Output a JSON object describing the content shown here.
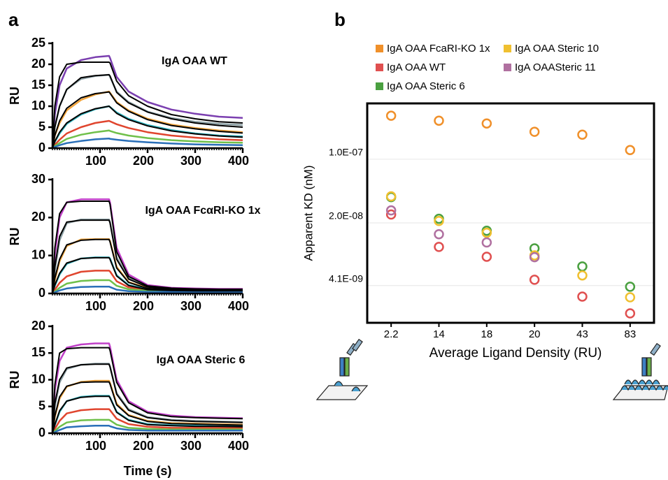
{
  "panels": [
    "a",
    "b"
  ],
  "chart_data": [
    {
      "type": "line",
      "title": "IgA OAA WT",
      "ylabel": "RU",
      "x": [
        0,
        5,
        15,
        30,
        60,
        90,
        119,
        121,
        135,
        160,
        200,
        250,
        300,
        350,
        400
      ],
      "xlim": [
        0,
        400
      ],
      "xticks": [
        100,
        200,
        300,
        400
      ],
      "ylim": [
        0,
        25
      ],
      "yticks": [
        0,
        5,
        10,
        15,
        20,
        25
      ],
      "series": [
        {
          "color": "#7b3fb0",
          "values": [
            0,
            8,
            15,
            19,
            21,
            21.7,
            22,
            21.5,
            17,
            13.5,
            11,
            9.2,
            8.2,
            7.5,
            7.2
          ]
        },
        {
          "color": "#8fa3a8",
          "values": [
            0,
            5,
            10,
            14,
            16.5,
            17.2,
            17.5,
            17,
            13.5,
            11,
            8.7,
            7.2,
            6.3,
            5.8,
            5.5
          ]
        },
        {
          "color": "#f2a43a",
          "values": [
            0,
            3,
            6,
            9,
            11.5,
            12.8,
            13.5,
            13.2,
            11,
            9,
            7,
            5.6,
            4.8,
            4.2,
            3.8
          ]
        },
        {
          "color": "#2fb5c0",
          "values": [
            0,
            1.5,
            3.5,
            5.8,
            8,
            9.3,
            10,
            9.8,
            8.5,
            7,
            5.5,
            4.3,
            3.5,
            3,
            2.8
          ]
        },
        {
          "color": "#e0452e",
          "values": [
            0,
            0.8,
            2,
            3.5,
            5,
            6,
            6.5,
            6.4,
            5.7,
            4.8,
            3.8,
            3,
            2.5,
            2.1,
            1.9
          ]
        },
        {
          "color": "#6fc04a",
          "values": [
            0,
            0.5,
            1.2,
            2.2,
            3.2,
            3.8,
            4.2,
            4.1,
            3.6,
            3,
            2.4,
            1.9,
            1.6,
            1.4,
            1.3
          ]
        },
        {
          "color": "#2a6fb8",
          "values": [
            0,
            0.3,
            0.7,
            1.2,
            1.7,
            2.1,
            2.3,
            2.2,
            2,
            1.7,
            1.4,
            1.1,
            0.9,
            0.8,
            0.7
          ]
        },
        {
          "color": "#000000",
          "values": [
            0,
            10,
            17,
            20,
            20.5,
            20.5,
            20.5,
            20.3,
            16,
            12.5,
            10,
            8,
            7,
            6.3,
            6
          ]
        },
        {
          "color": "#000000",
          "values": [
            0,
            5,
            10,
            14,
            16.8,
            17.3,
            17.5,
            17.2,
            13.3,
            10.8,
            8.6,
            7,
            6,
            5.4,
            5
          ]
        },
        {
          "color": "#000000",
          "values": [
            0,
            3,
            6.5,
            9.5,
            12,
            13,
            13.4,
            13.1,
            10.8,
            8.8,
            6.8,
            5.4,
            4.6,
            4,
            3.6
          ]
        },
        {
          "color": "#000000",
          "values": [
            0,
            1.6,
            3.8,
            6,
            8.2,
            9.4,
            10,
            9.8,
            8.3,
            6.8,
            5.3,
            4.1,
            3.4,
            2.9,
            2.6
          ]
        }
      ]
    },
    {
      "type": "line",
      "title": "IgA OAA FcαRI-KO 1x",
      "ylabel": "RU",
      "x": [
        0,
        5,
        15,
        30,
        60,
        90,
        119,
        121,
        135,
        160,
        200,
        250,
        300,
        350,
        400
      ],
      "xlim": [
        0,
        400
      ],
      "xticks": [
        100,
        200,
        300,
        400
      ],
      "ylim": [
        0,
        30
      ],
      "yticks": [
        0,
        10,
        20,
        30
      ],
      "series": [
        {
          "color": "#c040c8",
          "values": [
            0,
            10,
            20,
            24,
            24.8,
            24.8,
            24.8,
            24,
            12,
            5,
            2.2,
            1.5,
            1.3,
            1.2,
            1.2
          ]
        },
        {
          "color": "#8fa3a8",
          "values": [
            0,
            6,
            14,
            18.5,
            19.5,
            19.5,
            19.5,
            18.8,
            9.5,
            4,
            1.8,
            1.3,
            1.1,
            1,
            1
          ]
        },
        {
          "color": "#f2a43a",
          "values": [
            0,
            3.5,
            8.5,
            12.5,
            14.2,
            14.3,
            14.3,
            13.8,
            7,
            3,
            1.4,
            1,
            0.9,
            0.8,
            0.8
          ]
        },
        {
          "color": "#2fb5c0",
          "values": [
            0,
            2,
            5,
            7.8,
            9.2,
            9.5,
            9.5,
            9.2,
            4.8,
            2.2,
            1.1,
            0.9,
            0.8,
            0.7,
            0.7
          ]
        },
        {
          "color": "#e0452e",
          "values": [
            0,
            1,
            2.8,
            4.5,
            5.7,
            6,
            6,
            5.8,
            3.2,
            1.6,
            0.9,
            0.7,
            0.6,
            0.6,
            0.6
          ]
        },
        {
          "color": "#6fc04a",
          "values": [
            0,
            0.5,
            1.5,
            2.6,
            3.3,
            3.5,
            3.5,
            3.4,
            2,
            1.1,
            0.7,
            0.6,
            0.5,
            0.5,
            0.5
          ]
        },
        {
          "color": "#2a6fb8",
          "values": [
            0,
            0.3,
            0.8,
            1.3,
            1.7,
            1.8,
            1.8,
            1.7,
            1,
            0.6,
            0.4,
            0.4,
            0.4,
            0.4,
            0.4
          ]
        },
        {
          "color": "#000000",
          "values": [
            0,
            12,
            21,
            24,
            24.3,
            24.3,
            24.3,
            23.5,
            11,
            4.5,
            2,
            1.4,
            1.2,
            1.1,
            1.1
          ]
        },
        {
          "color": "#000000",
          "values": [
            0,
            7,
            15,
            18.8,
            19.3,
            19.3,
            19.3,
            18.6,
            9,
            3.8,
            1.7,
            1.2,
            1,
            1,
            1
          ]
        },
        {
          "color": "#000000",
          "values": [
            0,
            4,
            9,
            12.8,
            14,
            14.2,
            14.2,
            13.6,
            6.7,
            2.9,
            1.3,
            1,
            0.9,
            0.8,
            0.8
          ]
        },
        {
          "color": "#000000",
          "values": [
            0,
            2.2,
            5.3,
            8,
            9.2,
            9.4,
            9.4,
            9,
            4.6,
            2.1,
            1,
            0.8,
            0.7,
            0.7,
            0.7
          ]
        }
      ]
    },
    {
      "type": "line",
      "title": "IgA OAA Steric 6",
      "ylabel": "RU",
      "xlabel": "Time (s)",
      "x": [
        0,
        5,
        15,
        30,
        60,
        90,
        119,
        121,
        135,
        160,
        200,
        250,
        300,
        350,
        400
      ],
      "xlim": [
        0,
        400
      ],
      "xticks": [
        100,
        200,
        300,
        400
      ],
      "ylim": [
        0,
        20
      ],
      "yticks": [
        0,
        5,
        10,
        15,
        20
      ],
      "series": [
        {
          "color": "#c040c8",
          "values": [
            0,
            8,
            13.5,
            16,
            16.6,
            16.8,
            16.8,
            16.2,
            10,
            6,
            4,
            3.3,
            3,
            2.9,
            2.8
          ]
        },
        {
          "color": "#8fa3a8",
          "values": [
            0,
            5,
            9.5,
            12,
            12.8,
            13,
            13,
            12.5,
            7.5,
            4.5,
            3,
            2.5,
            2.3,
            2.2,
            2.1
          ]
        },
        {
          "color": "#f2a43a",
          "values": [
            0,
            3,
            6.5,
            8.7,
            9.6,
            9.8,
            9.8,
            9.4,
            5.5,
            3.4,
            2.3,
            1.9,
            1.8,
            1.7,
            1.6
          ]
        },
        {
          "color": "#2fb5c0",
          "values": [
            0,
            1.5,
            4,
            6,
            6.8,
            7,
            7,
            6.7,
            4,
            2.5,
            1.7,
            1.5,
            1.4,
            1.3,
            1.3
          ]
        },
        {
          "color": "#e0452e",
          "values": [
            0,
            0.8,
            2.3,
            3.7,
            4.3,
            4.5,
            4.5,
            4.3,
            2.7,
            1.7,
            1.2,
            1,
            1,
            1,
            1
          ]
        },
        {
          "color": "#6fc04a",
          "values": [
            0,
            0.4,
            1.2,
            2,
            2.4,
            2.5,
            2.5,
            2.4,
            1.6,
            1,
            0.8,
            0.7,
            0.7,
            0.7,
            0.7
          ]
        },
        {
          "color": "#2a6fb8",
          "values": [
            0,
            0.2,
            0.6,
            1.1,
            1.3,
            1.4,
            1.4,
            1.3,
            0.9,
            0.6,
            0.5,
            0.5,
            0.5,
            0.5,
            0.5
          ]
        },
        {
          "color": "#000000",
          "values": [
            0,
            9,
            15,
            15.8,
            16,
            16,
            16,
            15.5,
            9.5,
            5.7,
            3.8,
            3.1,
            2.9,
            2.8,
            2.7
          ]
        },
        {
          "color": "#000000",
          "values": [
            0,
            5.5,
            10,
            12.2,
            12.8,
            12.9,
            12.9,
            12.4,
            7.3,
            4.3,
            2.9,
            2.4,
            2.2,
            2.1,
            2
          ]
        },
        {
          "color": "#000000",
          "values": [
            0,
            3.2,
            6.8,
            8.8,
            9.5,
            9.6,
            9.6,
            9.2,
            5.3,
            3.3,
            2.2,
            1.8,
            1.7,
            1.6,
            1.5
          ]
        },
        {
          "color": "#000000",
          "values": [
            0,
            1.6,
            4.2,
            6,
            6.7,
            6.9,
            6.9,
            6.6,
            3.9,
            2.4,
            1.6,
            1.4,
            1.3,
            1.3,
            1.2
          ]
        }
      ]
    },
    {
      "type": "scatter",
      "ylabel": "Apparent KD (nM)",
      "xlabel": "Average Ligand Density (RU)",
      "categories": [
        "2.2",
        "14",
        "18",
        "20",
        "43",
        "83"
      ],
      "log_y": true,
      "grid": true,
      "ylim": [
        1.6e-09,
        4.1e-07
      ],
      "yticks": [
        {
          "value": 1e-07,
          "label": "1.0E-07"
        },
        {
          "value": 2e-08,
          "label": "2.0E-08"
        },
        {
          "value": 4.1e-09,
          "label": "4.1E-09"
        }
      ],
      "series": [
        {
          "name": "IgA OAA FcaRI-KO 1x",
          "color": "#f0902a",
          "values": [
            3e-07,
            2.65e-07,
            2.47e-07,
            2e-07,
            1.86e-07,
            1.26e-07
          ]
        },
        {
          "name": "IgA OAA WT",
          "color": "#e05050",
          "values": [
            2.47e-08,
            1.09e-08,
            8.5e-09,
            4.75e-09,
            3.1e-09,
            2.03e-09
          ]
        },
        {
          "name": "IgA OAA Steric 6",
          "color": "#4aa040",
          "values": [
            3.84e-08,
            2.22e-08,
            1.64e-08,
            1.05e-08,
            6.65e-09,
            3.98e-09
          ]
        },
        {
          "name": "IgA OAA Steric 10",
          "color": "#f0c030",
          "values": [
            3.91e-08,
            2.1e-08,
            1.56e-08,
            8.8e-09,
            5.3e-09,
            3.05e-09
          ]
        },
        {
          "name": "IgA  OAASteric 11",
          "color": "#b070a0",
          "values": [
            2.74e-08,
            1.5e-08,
            1.22e-08,
            8.4e-09,
            null,
            null
          ]
        }
      ]
    }
  ]
}
